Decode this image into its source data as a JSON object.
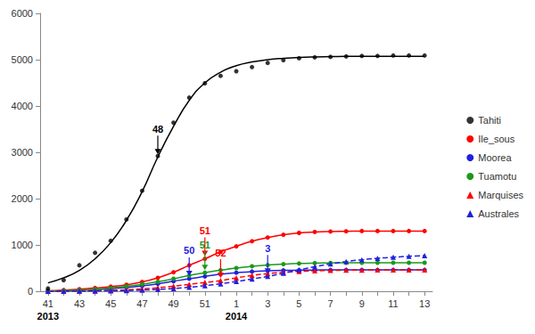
{
  "chart_data": {
    "type": "line",
    "categories": [
      "41",
      null,
      "43",
      null,
      "45",
      null,
      "47",
      null,
      "49",
      null,
      "51",
      null,
      "1",
      null,
      "3",
      null,
      "5",
      null,
      "7",
      null,
      "9",
      null,
      "11",
      null,
      "13"
    ],
    "year_labels": [
      {
        "text": "2013",
        "x": 0
      },
      {
        "text": "2014",
        "x": 12
      }
    ],
    "ylim": [
      0,
      6000
    ],
    "yticks": [
      0,
      1000,
      2000,
      3000,
      4000,
      5000,
      6000
    ],
    "grid": false,
    "legend": "right",
    "series": [
      {
        "name": "Tahiti",
        "color": "#000000",
        "marker": "circle",
        "line_style": "solid",
        "values": [
          60,
          240,
          560,
          830,
          1090,
          1550,
          2170,
          2920,
          3640,
          4180,
          4490,
          4650,
          4750,
          4840,
          4930,
          4990,
          5030,
          5050,
          5060,
          5070,
          5080,
          5080,
          5090,
          5090,
          5090
        ],
        "fit": [
          180,
          290,
          450,
          700,
          1050,
          1530,
          2150,
          2900,
          3560,
          4120,
          4500,
          4730,
          4870,
          4950,
          5000,
          5030,
          5050,
          5060,
          5065,
          5070,
          5070,
          5070,
          5070,
          5070,
          5070
        ]
      },
      {
        "name": "Ile_sous",
        "color": "#ff0000",
        "marker": "circle",
        "line_style": "solid",
        "values": [
          10,
          25,
          45,
          70,
          100,
          140,
          200,
          290,
          410,
          560,
          700,
          850,
          970,
          1080,
          1160,
          1220,
          1260,
          1280,
          1290,
          1295,
          1300,
          1300,
          1300,
          1300,
          1300
        ]
      },
      {
        "name": "Moorea",
        "color": "#2020e0",
        "marker": "circle",
        "line_style": "solid",
        "values": [
          5,
          10,
          20,
          35,
          55,
          80,
          115,
          160,
          215,
          270,
          320,
          370,
          400,
          425,
          440,
          450,
          455,
          458,
          460,
          460,
          460,
          460,
          460,
          460,
          460
        ]
      },
      {
        "name": "Tuamotu",
        "color": "#1a9a1a",
        "marker": "circle",
        "line_style": "solid",
        "values": [
          5,
          12,
          25,
          45,
          70,
          105,
          150,
          205,
          270,
          340,
          400,
          455,
          500,
          540,
          565,
          585,
          600,
          608,
          612,
          615,
          615,
          615,
          615,
          615,
          615
        ]
      },
      {
        "name": "Marquises",
        "color": "#ff0000",
        "marker": "triangle",
        "line_style": "dashed",
        "values": [
          0,
          2,
          5,
          10,
          18,
          30,
          50,
          75,
          110,
          150,
          190,
          230,
          290,
          340,
          380,
          410,
          430,
          440,
          450,
          455,
          458,
          460,
          460,
          460,
          460
        ]
      },
      {
        "name": "Australes",
        "color": "#2020e0",
        "marker": "triangle",
        "line_style": "dashed",
        "values": [
          0,
          1,
          3,
          6,
          10,
          15,
          25,
          40,
          60,
          85,
          120,
          160,
          210,
          265,
          320,
          390,
          460,
          530,
          590,
          640,
          680,
          710,
          735,
          755,
          770
        ]
      }
    ],
    "annotations": [
      {
        "text": "48",
        "series": "Tahiti",
        "x": 7
      },
      {
        "text": "51",
        "series": "Ile_sous",
        "x": 10
      },
      {
        "text": "50",
        "series": "Moorea",
        "x": 9
      },
      {
        "text": "51",
        "series": "Tuamotu",
        "x": 10
      },
      {
        "text": "52",
        "series": "Marquises",
        "x": 11
      },
      {
        "text": "3",
        "series": "Australes",
        "x": 14
      }
    ]
  }
}
